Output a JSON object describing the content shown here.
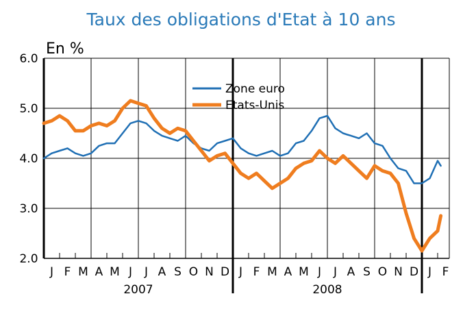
{
  "chart_data": {
    "type": "line",
    "title": "Taux des obligations d'Etat à 10 ans",
    "ylabel": "En %",
    "ylim": [
      2.0,
      6.0
    ],
    "yticks": [
      "2.0",
      "3.0",
      "4.0",
      "5.0",
      "6.0"
    ],
    "grid": true,
    "legend_position": "top-center",
    "x_month_labels": [
      "J",
      "F",
      "M",
      "A",
      "M",
      "J",
      "J",
      "A",
      "S",
      "O",
      "N",
      "D",
      "J",
      "F",
      "M",
      "A",
      "M",
      "J",
      "J",
      "A",
      "S",
      "O",
      "N",
      "D",
      "J",
      "F"
    ],
    "year_labels": [
      {
        "label": "2007",
        "month_center": 6
      },
      {
        "label": "2008",
        "month_center": 18
      }
    ],
    "x_unit": "months since January 2007",
    "series": [
      {
        "name": "Zone euro",
        "color": "#1f6fb4",
        "points": [
          [
            0,
            4.0
          ],
          [
            0.5,
            4.1
          ],
          [
            1,
            4.15
          ],
          [
            1.5,
            4.2
          ],
          [
            2,
            4.1
          ],
          [
            2.5,
            4.05
          ],
          [
            3,
            4.1
          ],
          [
            3.5,
            4.25
          ],
          [
            4,
            4.3
          ],
          [
            4.5,
            4.3
          ],
          [
            5,
            4.5
          ],
          [
            5.5,
            4.7
          ],
          [
            6,
            4.75
          ],
          [
            6.5,
            4.7
          ],
          [
            7,
            4.55
          ],
          [
            7.5,
            4.45
          ],
          [
            8,
            4.4
          ],
          [
            8.5,
            4.35
          ],
          [
            9,
            4.45
          ],
          [
            9.5,
            4.3
          ],
          [
            10,
            4.2
          ],
          [
            10.5,
            4.15
          ],
          [
            11,
            4.3
          ],
          [
            11.5,
            4.35
          ],
          [
            12,
            4.4
          ],
          [
            12.5,
            4.2
          ],
          [
            13,
            4.1
          ],
          [
            13.5,
            4.05
          ],
          [
            14,
            4.1
          ],
          [
            14.5,
            4.15
          ],
          [
            15,
            4.05
          ],
          [
            15.5,
            4.1
          ],
          [
            16,
            4.3
          ],
          [
            16.5,
            4.35
          ],
          [
            17,
            4.55
          ],
          [
            17.5,
            4.8
          ],
          [
            18,
            4.85
          ],
          [
            18.5,
            4.6
          ],
          [
            19,
            4.5
          ],
          [
            19.5,
            4.45
          ],
          [
            20,
            4.4
          ],
          [
            20.5,
            4.5
          ],
          [
            21,
            4.3
          ],
          [
            21.5,
            4.25
          ],
          [
            22,
            4.0
          ],
          [
            22.5,
            3.8
          ],
          [
            23,
            3.75
          ],
          [
            23.5,
            3.5
          ],
          [
            24,
            3.5
          ],
          [
            24.5,
            3.6
          ],
          [
            25,
            3.95
          ],
          [
            25.2,
            3.85
          ]
        ]
      },
      {
        "name": "Etats-Unis",
        "color": "#ef7d1f",
        "points": [
          [
            0,
            4.7
          ],
          [
            0.5,
            4.75
          ],
          [
            1,
            4.85
          ],
          [
            1.5,
            4.75
          ],
          [
            2,
            4.55
          ],
          [
            2.5,
            4.55
          ],
          [
            3,
            4.65
          ],
          [
            3.5,
            4.7
          ],
          [
            4,
            4.65
          ],
          [
            4.5,
            4.75
          ],
          [
            5,
            5.0
          ],
          [
            5.5,
            5.15
          ],
          [
            6,
            5.1
          ],
          [
            6.5,
            5.05
          ],
          [
            7,
            4.8
          ],
          [
            7.5,
            4.6
          ],
          [
            8,
            4.5
          ],
          [
            8.5,
            4.6
          ],
          [
            9,
            4.55
          ],
          [
            9.5,
            4.35
          ],
          [
            10,
            4.15
          ],
          [
            10.5,
            3.95
          ],
          [
            11,
            4.05
          ],
          [
            11.5,
            4.1
          ],
          [
            12,
            3.9
          ],
          [
            12.5,
            3.7
          ],
          [
            13,
            3.6
          ],
          [
            13.5,
            3.7
          ],
          [
            14,
            3.55
          ],
          [
            14.5,
            3.4
          ],
          [
            15,
            3.5
          ],
          [
            15.5,
            3.6
          ],
          [
            16,
            3.8
          ],
          [
            16.5,
            3.9
          ],
          [
            17,
            3.95
          ],
          [
            17.5,
            4.15
          ],
          [
            18,
            4.0
          ],
          [
            18.5,
            3.9
          ],
          [
            19,
            4.05
          ],
          [
            19.5,
            3.9
          ],
          [
            20,
            3.75
          ],
          [
            20.5,
            3.6
          ],
          [
            21,
            3.85
          ],
          [
            21.5,
            3.75
          ],
          [
            22,
            3.7
          ],
          [
            22.5,
            3.5
          ],
          [
            23,
            2.9
          ],
          [
            23.5,
            2.4
          ],
          [
            24,
            2.15
          ],
          [
            24.5,
            2.4
          ],
          [
            25,
            2.55
          ],
          [
            25.2,
            2.85
          ]
        ]
      }
    ]
  }
}
